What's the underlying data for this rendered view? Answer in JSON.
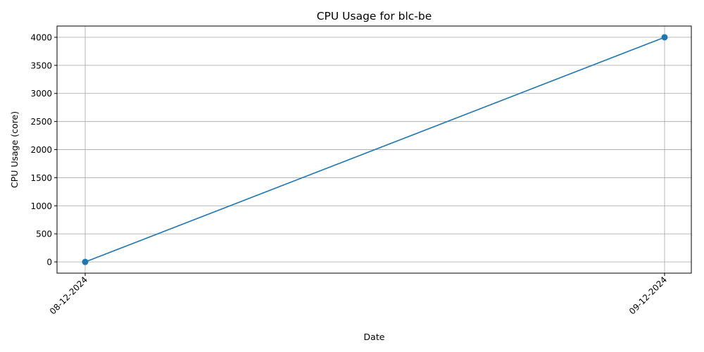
{
  "chart_data": {
    "type": "line",
    "title": "CPU Usage for blc-be",
    "xlabel": "Date",
    "ylabel": "CPU Usage (core)",
    "x": [
      "08-12-2024",
      "09-12-2024"
    ],
    "series": [
      {
        "values": [
          0,
          4000
        ],
        "color": "#1f77b4",
        "marker": "circle"
      }
    ],
    "ylim": [
      -200,
      4200
    ],
    "yticks": [
      0,
      500,
      1000,
      1500,
      2000,
      2500,
      3000,
      3500,
      4000
    ],
    "xtick_rotation": "45 degrees",
    "grid": true,
    "legend": false
  }
}
